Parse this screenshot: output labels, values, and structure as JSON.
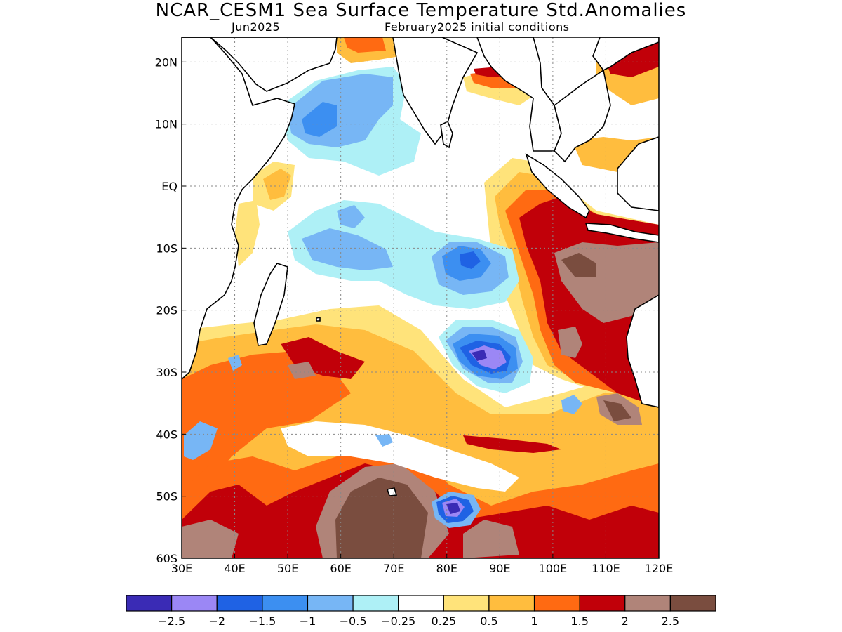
{
  "title": "NCAR_CESM1 Sea Surface Temperature Std.Anomalies",
  "subtitle_left": "Jun2025",
  "subtitle_right": "February2025 initial conditions",
  "map": {
    "lon_range": [
      30,
      120
    ],
    "lat_range": [
      -60,
      24
    ],
    "x_ticks": [
      "30E",
      "40E",
      "50E",
      "60E",
      "70E",
      "80E",
      "90E",
      "100E",
      "110E",
      "120E"
    ],
    "y_ticks": [
      "20N",
      "10N",
      "EQ",
      "10S",
      "20S",
      "30S",
      "40S",
      "50S",
      "60S"
    ],
    "grid": true
  },
  "colorbar": {
    "colors": [
      "#3a2bb5",
      "#9b87f5",
      "#1f62e4",
      "#3c8ff1",
      "#77b6f5",
      "#aef0f6",
      "#ffffff",
      "#ffe37a",
      "#ffbd3e",
      "#ff6a12",
      "#c10009",
      "#b08479",
      "#7a4d3f"
    ],
    "labels": [
      "−2.5",
      "−2",
      "−1.5",
      "−1",
      "−0.5",
      "−0.25",
      "0.25",
      "0.5",
      "1",
      "1.5",
      "2",
      "2.5"
    ]
  }
}
